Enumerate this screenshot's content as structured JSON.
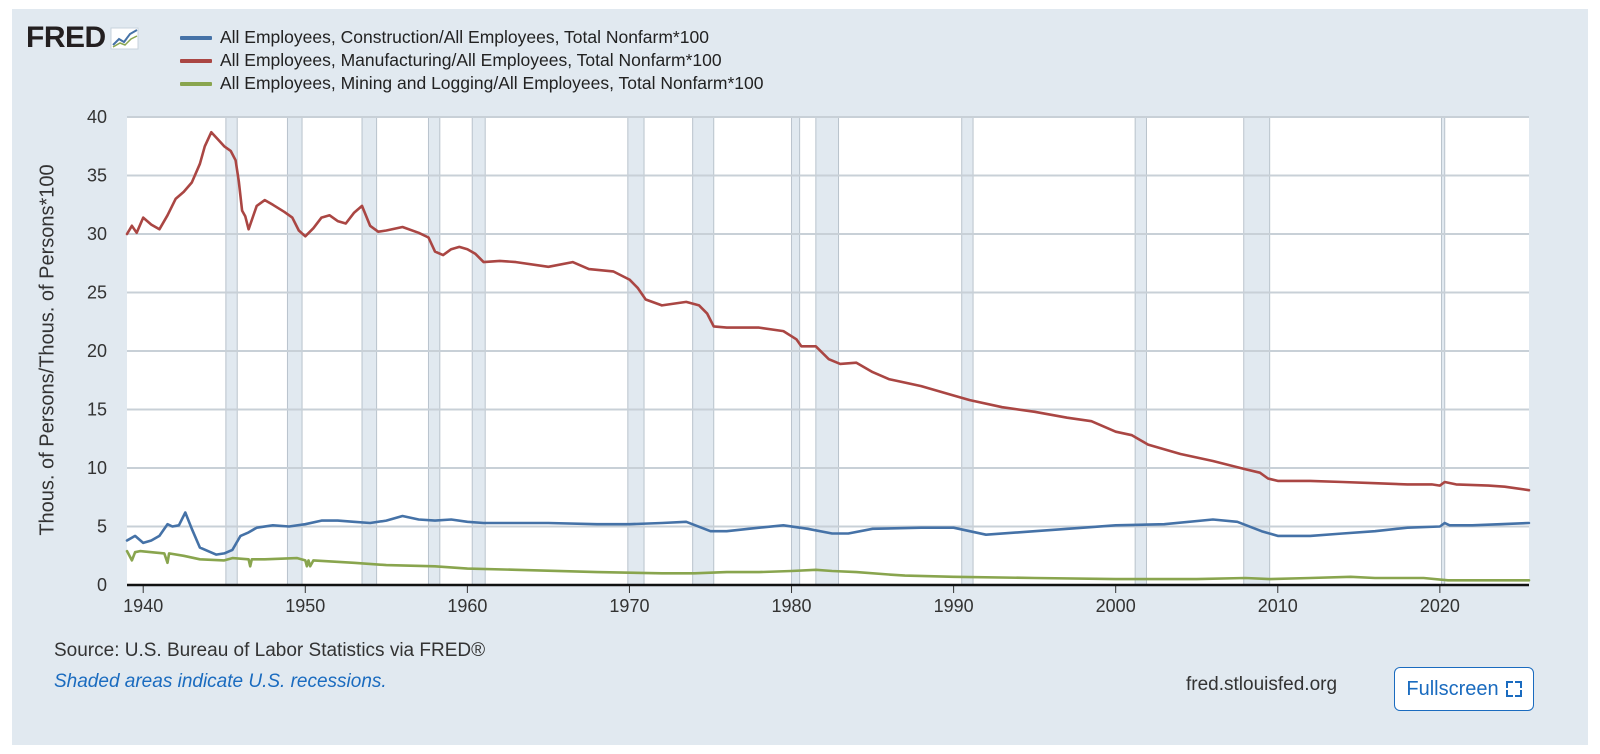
{
  "header": {
    "logo_text": "FRED",
    "logo_icon": "fred-chart-icon"
  },
  "footer": {
    "source": "Source: U.S. Bureau of Labor Statistics via FRED®",
    "note": "Shaded areas indicate U.S. recessions.",
    "site": "fred.stlouisfed.org",
    "fullscreen_label": "Fullscreen",
    "fullscreen_icon": "fullscreen-icon"
  },
  "colors": {
    "panel_bg": "#e1e9f0",
    "plot_bg": "#ffffff",
    "recession_shade": "#e1e9f0",
    "construction": "#4572a7",
    "manufacturing": "#aa4643",
    "mining": "#89a54e",
    "link": "#1a6bbf"
  },
  "chart_data": {
    "type": "line",
    "title": "",
    "xlabel": "",
    "ylabel": "Thous. of Persons/Thous. of Persons*100",
    "xlim": [
      1939.0,
      2025.5
    ],
    "ylim": [
      0,
      40
    ],
    "yticks": [
      0,
      5,
      10,
      15,
      20,
      25,
      30,
      35,
      40
    ],
    "xticks": [
      1940,
      1950,
      1960,
      1970,
      1980,
      1990,
      2000,
      2010,
      2020
    ],
    "grid": true,
    "legend": "top-left",
    "recessions": [
      [
        1945.1,
        1945.8
      ],
      [
        1948.9,
        1949.8
      ],
      [
        1953.5,
        1954.4
      ],
      [
        1957.6,
        1958.3
      ],
      [
        1960.3,
        1961.1
      ],
      [
        1969.9,
        1970.9
      ],
      [
        1973.9,
        1975.2
      ],
      [
        1980.0,
        1980.5
      ],
      [
        1981.5,
        1982.9
      ],
      [
        1990.5,
        1991.2
      ],
      [
        2001.2,
        2001.9
      ],
      [
        2007.9,
        2009.5
      ],
      [
        2020.1,
        2020.3
      ]
    ],
    "series": [
      {
        "name": "All Employees, Construction/All Employees, Total Nonfarm*100",
        "color": "#4572a7",
        "x": [
          1939.0,
          1939.5,
          1940.0,
          1940.5,
          1941.0,
          1941.5,
          1941.8,
          1942.2,
          1942.6,
          1943.0,
          1943.5,
          1944.0,
          1944.5,
          1945.0,
          1945.5,
          1946.0,
          1946.5,
          1947.0,
          1948.0,
          1949.0,
          1950.0,
          1951.0,
          1952.0,
          1953.0,
          1954.0,
          1955.0,
          1956.0,
          1957.0,
          1958.0,
          1959.0,
          1960.0,
          1961.0,
          1962.0,
          1965.0,
          1968.0,
          1970.0,
          1972.0,
          1973.5,
          1975.0,
          1976.0,
          1978.0,
          1979.5,
          1981.0,
          1982.5,
          1983.5,
          1985.0,
          1988.0,
          1990.0,
          1992.0,
          1995.0,
          1998.0,
          2000.0,
          2003.0,
          2006.0,
          2007.5,
          2009.0,
          2010.0,
          2012.0,
          2014.0,
          2016.0,
          2018.0,
          2020.0,
          2020.3,
          2020.6,
          2022.0,
          2025.5
        ],
        "values": [
          3.8,
          4.2,
          3.6,
          3.8,
          4.2,
          5.2,
          5.0,
          5.1,
          6.2,
          4.8,
          3.2,
          2.9,
          2.6,
          2.7,
          3.0,
          4.2,
          4.5,
          4.9,
          5.1,
          5.0,
          5.2,
          5.5,
          5.5,
          5.4,
          5.3,
          5.5,
          5.9,
          5.6,
          5.5,
          5.6,
          5.4,
          5.3,
          5.3,
          5.3,
          5.2,
          5.2,
          5.3,
          5.4,
          4.6,
          4.6,
          4.9,
          5.1,
          4.8,
          4.4,
          4.4,
          4.8,
          4.9,
          4.9,
          4.3,
          4.6,
          4.9,
          5.1,
          5.2,
          5.6,
          5.4,
          4.6,
          4.2,
          4.2,
          4.4,
          4.6,
          4.9,
          5.0,
          5.3,
          5.1,
          5.1,
          5.3
        ]
      },
      {
        "name": "All Employees, Manufacturing/All Employees, Total Nonfarm*100",
        "color": "#aa4643",
        "x": [
          1939.0,
          1939.3,
          1939.6,
          1940.0,
          1940.5,
          1941.0,
          1941.5,
          1942.0,
          1942.5,
          1943.0,
          1943.5,
          1943.8,
          1944.2,
          1944.6,
          1945.0,
          1945.4,
          1945.7,
          1945.9,
          1946.1,
          1946.3,
          1946.5,
          1947.0,
          1947.5,
          1948.0,
          1948.7,
          1949.2,
          1949.6,
          1950.0,
          1950.5,
          1951.0,
          1951.5,
          1952.0,
          1952.5,
          1953.0,
          1953.5,
          1954.0,
          1954.5,
          1955.0,
          1956.0,
          1957.0,
          1957.6,
          1958.0,
          1958.5,
          1959.0,
          1959.5,
          1960.0,
          1960.5,
          1961.0,
          1962.0,
          1963.0,
          1965.0,
          1966.5,
          1967.5,
          1969.0,
          1970.0,
          1970.5,
          1971.0,
          1972.0,
          1973.5,
          1974.3,
          1974.8,
          1975.2,
          1976.0,
          1978.0,
          1979.5,
          1980.3,
          1980.6,
          1981.5,
          1982.3,
          1983.0,
          1984.0,
          1985.0,
          1986.0,
          1988.0,
          1990.0,
          1991.0,
          1993.0,
          1995.0,
          1997.0,
          1998.5,
          2000.0,
          2001.0,
          2002.0,
          2004.0,
          2006.0,
          2008.0,
          2008.9,
          2009.4,
          2010.0,
          2012.0,
          2014.0,
          2016.0,
          2018.0,
          2019.5,
          2020.0,
          2020.3,
          2021.0,
          2023.0,
          2024.0,
          2025.5
        ],
        "values": [
          30.0,
          30.7,
          30.1,
          31.4,
          30.8,
          30.4,
          31.6,
          33.0,
          33.6,
          34.4,
          36.0,
          37.5,
          38.7,
          38.1,
          37.5,
          37.1,
          36.3,
          34.5,
          32.0,
          31.5,
          30.4,
          32.4,
          32.9,
          32.5,
          31.9,
          31.4,
          30.3,
          29.8,
          30.5,
          31.4,
          31.6,
          31.1,
          30.9,
          31.8,
          32.4,
          30.7,
          30.2,
          30.3,
          30.6,
          30.1,
          29.7,
          28.5,
          28.2,
          28.7,
          28.9,
          28.7,
          28.3,
          27.6,
          27.7,
          27.6,
          27.2,
          27.6,
          27.0,
          26.8,
          26.1,
          25.4,
          24.4,
          23.9,
          24.2,
          23.9,
          23.2,
          22.1,
          22.0,
          22.0,
          21.7,
          21.0,
          20.4,
          20.4,
          19.3,
          18.9,
          19.0,
          18.2,
          17.6,
          17.0,
          16.2,
          15.8,
          15.2,
          14.8,
          14.3,
          14.0,
          13.1,
          12.8,
          12.0,
          11.2,
          10.6,
          9.9,
          9.6,
          9.1,
          8.9,
          8.9,
          8.8,
          8.7,
          8.6,
          8.6,
          8.5,
          8.8,
          8.6,
          8.5,
          8.4,
          8.1
        ]
      },
      {
        "name": "All Employees, Mining and Logging/All Employees, Total Nonfarm*100",
        "color": "#89a54e",
        "x": [
          1939.0,
          1939.3,
          1939.5,
          1939.8,
          1940.5,
          1941.3,
          1941.5,
          1941.6,
          1942.5,
          1943.5,
          1945.0,
          1945.5,
          1946.5,
          1946.6,
          1946.7,
          1947.5,
          1949.5,
          1950.0,
          1950.1,
          1950.2,
          1950.3,
          1950.5,
          1953.0,
          1955.0,
          1958.0,
          1960.0,
          1963.0,
          1968.0,
          1972.0,
          1974.0,
          1976.0,
          1978.0,
          1980.0,
          1981.5,
          1982.5,
          1984.0,
          1986.0,
          1987.0,
          1990.0,
          1995.0,
          2000.0,
          2005.0,
          2008.0,
          2009.5,
          2012.0,
          2014.5,
          2016.0,
          2019.0,
          2020.5,
          2025.5
        ],
        "values": [
          2.9,
          2.1,
          2.8,
          2.9,
          2.8,
          2.7,
          1.9,
          2.7,
          2.5,
          2.2,
          2.1,
          2.3,
          2.2,
          1.6,
          2.2,
          2.2,
          2.3,
          2.1,
          1.6,
          2.1,
          1.6,
          2.1,
          1.9,
          1.7,
          1.6,
          1.4,
          1.3,
          1.1,
          1.0,
          1.0,
          1.1,
          1.1,
          1.2,
          1.3,
          1.2,
          1.1,
          0.9,
          0.8,
          0.7,
          0.6,
          0.5,
          0.5,
          0.6,
          0.5,
          0.6,
          0.7,
          0.6,
          0.6,
          0.4,
          0.4
        ]
      }
    ]
  }
}
